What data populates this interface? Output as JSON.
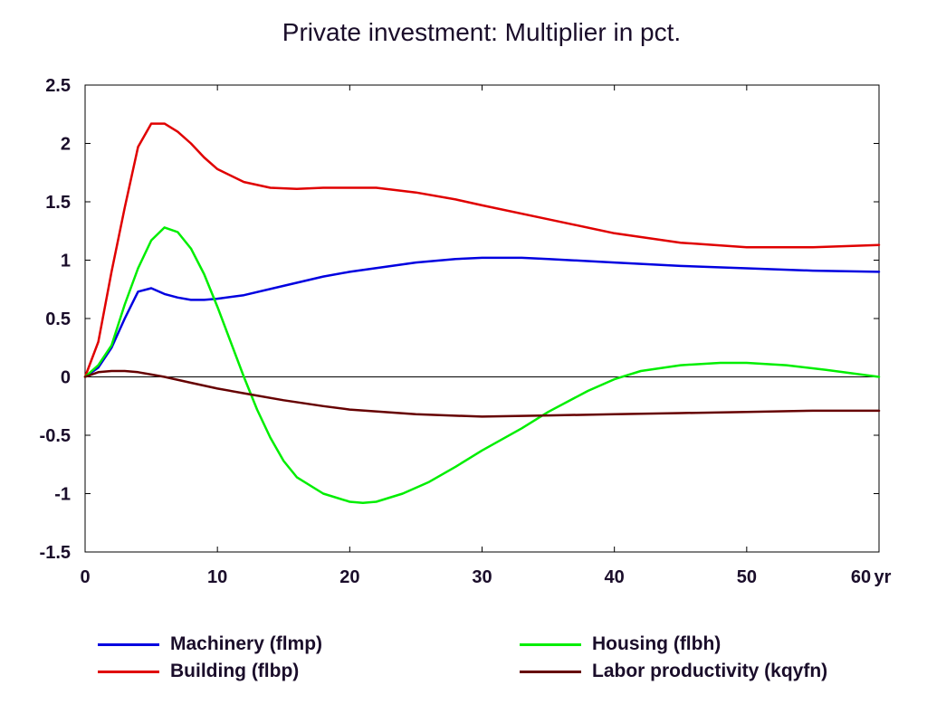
{
  "chart_data": {
    "type": "line",
    "title": "Private investment: Multiplier in pct.",
    "x_unit_label": "yr",
    "xlim": [
      0,
      60
    ],
    "ylim": [
      -1.5,
      2.5
    ],
    "x_ticks": [
      0,
      10,
      20,
      30,
      40,
      50,
      60
    ],
    "y_ticks": [
      2.5,
      2,
      1.5,
      1,
      0.5,
      0,
      -0.5,
      -1,
      -1.5
    ],
    "y_tick_labels": [
      "2.5",
      "2",
      "1.5",
      "1",
      "0.5",
      "0",
      "-0.5",
      "-1",
      "-1.5"
    ],
    "grid": false,
    "zero_line": true,
    "legend_position": "bottom",
    "series": [
      {
        "name": "Machinery (flmp)",
        "color": "#0000e0",
        "points": [
          [
            0,
            0
          ],
          [
            1,
            0.08
          ],
          [
            2,
            0.25
          ],
          [
            3,
            0.5
          ],
          [
            4,
            0.73
          ],
          [
            5,
            0.76
          ],
          [
            6,
            0.71
          ],
          [
            7,
            0.68
          ],
          [
            8,
            0.66
          ],
          [
            9,
            0.66
          ],
          [
            10,
            0.67
          ],
          [
            12,
            0.7
          ],
          [
            15,
            0.78
          ],
          [
            18,
            0.86
          ],
          [
            20,
            0.9
          ],
          [
            25,
            0.98
          ],
          [
            28,
            1.01
          ],
          [
            30,
            1.02
          ],
          [
            33,
            1.02
          ],
          [
            35,
            1.01
          ],
          [
            40,
            0.98
          ],
          [
            45,
            0.95
          ],
          [
            50,
            0.93
          ],
          [
            55,
            0.91
          ],
          [
            60,
            0.9
          ]
        ]
      },
      {
        "name": "Building (flbp)",
        "color": "#e00000",
        "points": [
          [
            0,
            0
          ],
          [
            1,
            0.3
          ],
          [
            2,
            0.9
          ],
          [
            3,
            1.45
          ],
          [
            4,
            1.97
          ],
          [
            5,
            2.17
          ],
          [
            6,
            2.17
          ],
          [
            7,
            2.1
          ],
          [
            8,
            2.0
          ],
          [
            9,
            1.88
          ],
          [
            10,
            1.78
          ],
          [
            12,
            1.67
          ],
          [
            14,
            1.62
          ],
          [
            16,
            1.61
          ],
          [
            18,
            1.62
          ],
          [
            20,
            1.62
          ],
          [
            22,
            1.62
          ],
          [
            25,
            1.58
          ],
          [
            28,
            1.52
          ],
          [
            30,
            1.47
          ],
          [
            35,
            1.35
          ],
          [
            40,
            1.23
          ],
          [
            45,
            1.15
          ],
          [
            50,
            1.11
          ],
          [
            55,
            1.11
          ],
          [
            60,
            1.13
          ]
        ]
      },
      {
        "name": "Housing (flbh)",
        "color": "#00ee00",
        "points": [
          [
            0,
            0
          ],
          [
            1,
            0.1
          ],
          [
            2,
            0.27
          ],
          [
            3,
            0.62
          ],
          [
            4,
            0.93
          ],
          [
            5,
            1.17
          ],
          [
            6,
            1.28
          ],
          [
            7,
            1.24
          ],
          [
            8,
            1.1
          ],
          [
            9,
            0.88
          ],
          [
            10,
            0.6
          ],
          [
            11,
            0.3
          ],
          [
            12,
            0.0
          ],
          [
            13,
            -0.28
          ],
          [
            14,
            -0.52
          ],
          [
            15,
            -0.72
          ],
          [
            16,
            -0.86
          ],
          [
            18,
            -1.0
          ],
          [
            20,
            -1.07
          ],
          [
            21,
            -1.08
          ],
          [
            22,
            -1.07
          ],
          [
            24,
            -1.0
          ],
          [
            26,
            -0.9
          ],
          [
            28,
            -0.77
          ],
          [
            30,
            -0.63
          ],
          [
            33,
            -0.44
          ],
          [
            35,
            -0.3
          ],
          [
            38,
            -0.12
          ],
          [
            40,
            -0.02
          ],
          [
            42,
            0.05
          ],
          [
            45,
            0.1
          ],
          [
            48,
            0.12
          ],
          [
            50,
            0.12
          ],
          [
            53,
            0.1
          ],
          [
            56,
            0.06
          ],
          [
            60,
            0.0
          ]
        ]
      },
      {
        "name": "Labor productivity (kqyfn)",
        "color": "#660000",
        "points": [
          [
            0,
            0
          ],
          [
            1,
            0.04
          ],
          [
            2,
            0.05
          ],
          [
            3,
            0.05
          ],
          [
            4,
            0.04
          ],
          [
            5,
            0.02
          ],
          [
            6,
            0.0
          ],
          [
            8,
            -0.05
          ],
          [
            10,
            -0.1
          ],
          [
            12,
            -0.14
          ],
          [
            15,
            -0.2
          ],
          [
            18,
            -0.25
          ],
          [
            20,
            -0.28
          ],
          [
            25,
            -0.32
          ],
          [
            30,
            -0.34
          ],
          [
            35,
            -0.33
          ],
          [
            40,
            -0.32
          ],
          [
            45,
            -0.31
          ],
          [
            50,
            -0.3
          ],
          [
            55,
            -0.29
          ],
          [
            60,
            -0.29
          ]
        ]
      }
    ]
  }
}
